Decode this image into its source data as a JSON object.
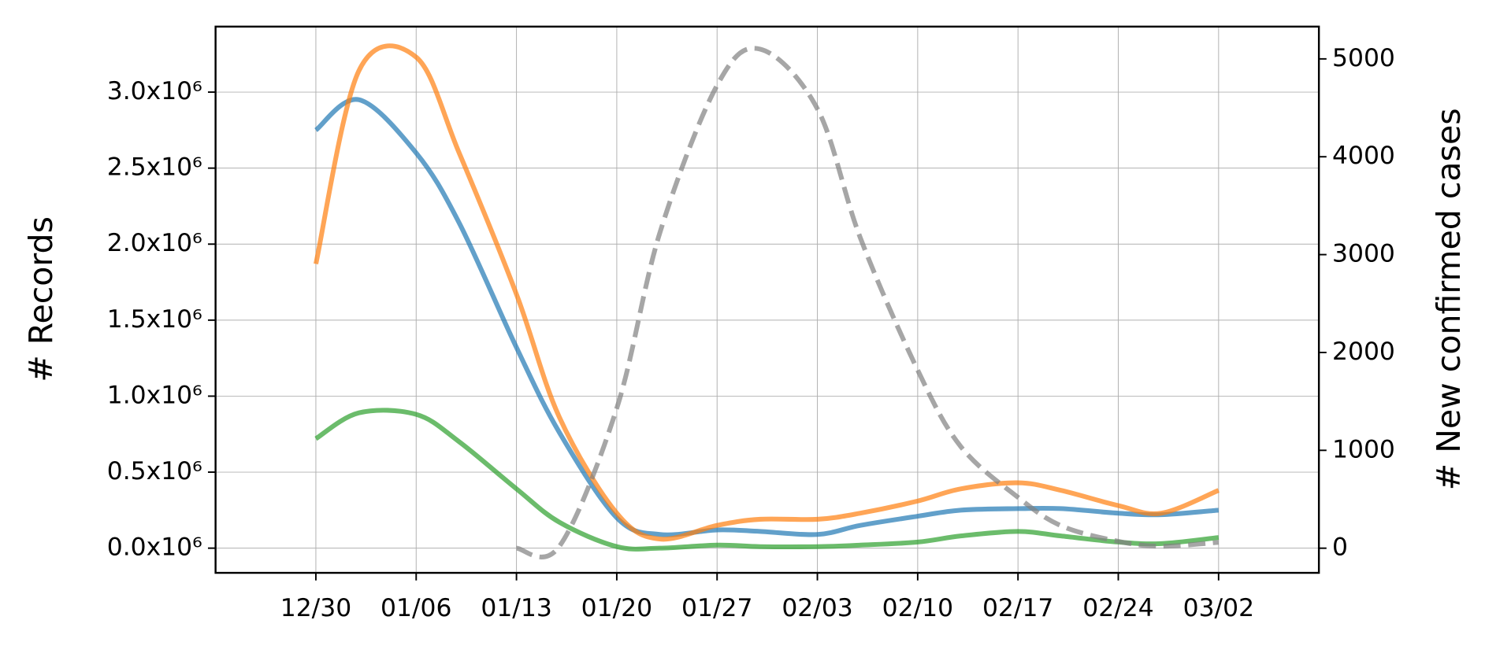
{
  "chart_data": {
    "type": "line",
    "y_label": "# Records",
    "y2_label": "# New confirmed cases",
    "x": [
      "12/30",
      "01/02",
      "01/06",
      "01/09",
      "01/13",
      "01/16",
      "01/20",
      "01/23",
      "01/27",
      "01/30",
      "02/03",
      "02/06",
      "02/10",
      "02/13",
      "02/17",
      "02/20",
      "02/24",
      "02/27",
      "03/02"
    ],
    "xlim": [
      "12/23",
      "03/09"
    ],
    "xticks": [
      "12/30",
      "01/06",
      "01/13",
      "01/20",
      "01/27",
      "02/03",
      "02/10",
      "02/17",
      "02/24",
      "03/02"
    ],
    "ylim": [
      -162500,
      3431000
    ],
    "yticks": [
      {
        "value": 0,
        "label": "0.0x10⁶"
      },
      {
        "value": 500000,
        "label": "0.5x10⁶"
      },
      {
        "value": 1000000,
        "label": "1.0x10⁶"
      },
      {
        "value": 1500000,
        "label": "1.5x10⁶"
      },
      {
        "value": 2000000,
        "label": "2.0x10⁶"
      },
      {
        "value": 2500000,
        "label": "2.5x10⁶"
      },
      {
        "value": 3000000,
        "label": "3.0x10⁶"
      }
    ],
    "y2lim": [
      -252,
      5330
    ],
    "y2ticks": [
      0,
      1000,
      2000,
      3000,
      4000,
      5000
    ],
    "grid": true,
    "series": [
      {
        "color": "#1f77b4",
        "linestyle": "solid",
        "values": [
          2750000,
          2950000,
          2600000,
          2140000,
          1320000,
          760000,
          200000,
          90000,
          120000,
          110000,
          90000,
          150000,
          210000,
          250000,
          260000,
          260000,
          230000,
          220000,
          250000
        ]
      },
      {
        "color": "#ff7f0e",
        "linestyle": "solid",
        "values": [
          1870000,
          3140000,
          3230000,
          2600000,
          1670000,
          860000,
          230000,
          60000,
          150000,
          190000,
          190000,
          230000,
          310000,
          390000,
          430000,
          380000,
          280000,
          230000,
          380000
        ]
      },
      {
        "color": "#2ca02c",
        "linestyle": "solid",
        "values": [
          720000,
          890000,
          880000,
          700000,
          390000,
          170000,
          10000,
          0,
          20000,
          10000,
          10000,
          20000,
          40000,
          80000,
          110000,
          80000,
          40000,
          30000,
          70000
        ]
      },
      {
        "color": "#808080",
        "linestyle": "dashed",
        "axis": "y2",
        "values": [
          null,
          null,
          null,
          null,
          0,
          20,
          1430,
          3220,
          4730,
          5100,
          4490,
          3170,
          1820,
          1040,
          520,
          230,
          70,
          20,
          60
        ]
      }
    ]
  }
}
